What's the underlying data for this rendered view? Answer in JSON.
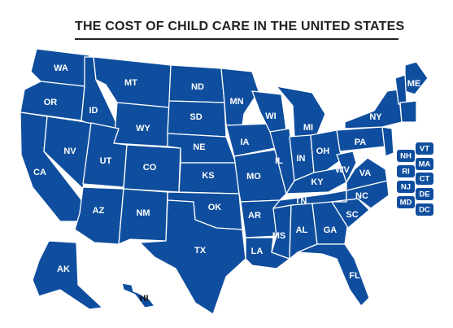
{
  "title": "THE COST OF CHILD CARE IN THE UNITED STATES",
  "colors": {
    "state_fill": "#0f4e9e",
    "border": "#ffffff",
    "title": "#222222"
  },
  "states": {
    "WA": "WA",
    "OR": "OR",
    "CA": "CA",
    "NV": "NV",
    "ID": "ID",
    "MT": "MT",
    "WY": "WY",
    "UT": "UT",
    "AZ": "AZ",
    "CO": "CO",
    "NM": "NM",
    "ND": "ND",
    "SD": "SD",
    "NE": "NE",
    "KS": "KS",
    "OK": "OK",
    "TX": "TX",
    "MN": "MN",
    "IA": "IA",
    "MO": "MO",
    "AR": "AR",
    "LA": "LA",
    "WI": "WI",
    "IL": "IL",
    "MS": "MS",
    "MI": "MI",
    "IN": "IN",
    "OH": "OH",
    "KY": "KY",
    "TN": "TN",
    "AL": "AL",
    "GA": "GA",
    "FL": "FL",
    "SC": "SC",
    "NC": "NC",
    "VA": "VA",
    "WV": "WV",
    "PA": "PA",
    "NY": "NY",
    "ME": "ME",
    "AK": "AK",
    "HI": "HI"
  },
  "small_states": {
    "NH": "NH",
    "VT": "VT",
    "MA": "MA",
    "RI": "RI",
    "CT": "CT",
    "NJ": "NJ",
    "DE": "DE",
    "MD": "MD",
    "DC": "DC"
  }
}
